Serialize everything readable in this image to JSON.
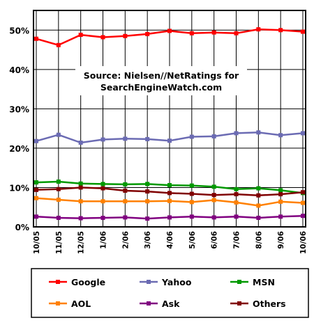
{
  "chart_data": {
    "type": "line",
    "x": [
      "10/05",
      "11/05",
      "12/05",
      "1/06",
      "2/06",
      "3/06",
      "4/06",
      "5/06",
      "6/06",
      "7/06",
      "8/06",
      "9/06",
      "10/06"
    ],
    "ylim": [
      0,
      55
    ],
    "yticks": [
      0,
      10,
      20,
      30,
      40,
      50
    ],
    "ytick_labels": [
      "0%",
      "10%",
      "20%",
      "30%",
      "40%",
      "50%"
    ],
    "grid": true,
    "legend_position": "bottom",
    "annotation": [
      "Source: Nielsen//NetRatings for",
      "SearchEngineWatch.com"
    ],
    "series": [
      {
        "name": "Google",
        "color": "#ff0000",
        "values": [
          47.8,
          46.2,
          48.8,
          48.2,
          48.5,
          49.0,
          49.8,
          49.2,
          49.4,
          49.2,
          50.2,
          50.0,
          49.6
        ]
      },
      {
        "name": "Yahoo",
        "color": "#6b6bb3",
        "values": [
          21.8,
          23.4,
          21.4,
          22.2,
          22.4,
          22.3,
          21.9,
          22.9,
          23.0,
          23.8,
          24.0,
          23.3,
          23.8
        ]
      },
      {
        "name": "MSN",
        "color": "#009900",
        "values": [
          11.3,
          11.5,
          11.0,
          10.9,
          10.8,
          10.9,
          10.6,
          10.5,
          10.2,
          9.6,
          9.8,
          9.3,
          8.6
        ]
      },
      {
        "name": "AOL",
        "color": "#ff8000",
        "values": [
          7.3,
          6.9,
          6.5,
          6.5,
          6.5,
          6.5,
          6.6,
          6.3,
          6.8,
          6.2,
          5.4,
          6.4,
          6.1
        ]
      },
      {
        "name": "Ask",
        "color": "#800080",
        "values": [
          2.6,
          2.3,
          2.2,
          2.3,
          2.4,
          2.1,
          2.4,
          2.6,
          2.4,
          2.6,
          2.3,
          2.6,
          2.8
        ]
      },
      {
        "name": "Others",
        "color": "#800000",
        "values": [
          9.4,
          9.6,
          10.0,
          9.8,
          9.2,
          9.0,
          8.6,
          8.4,
          8.1,
          8.3,
          8.0,
          8.3,
          8.8
        ]
      }
    ]
  }
}
